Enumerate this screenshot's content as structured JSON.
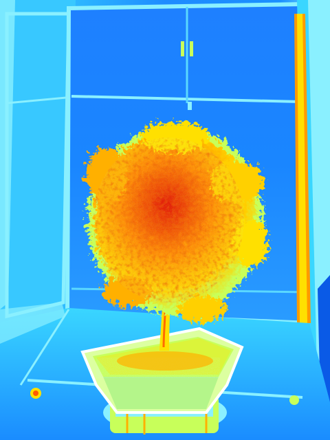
{
  "image": {
    "kind": "false-color thermal-style photograph",
    "subject": "potted-tree",
    "palette": {
      "deep_blue": "#0a5ae6",
      "blue": "#1e8cff",
      "cyan": "#3ad6ff",
      "light_cyan": "#8af0ff",
      "yellow_green": "#c8ff5a",
      "yellow": "#ffe000",
      "orange": "#ff8a00",
      "red": "#e41a00"
    }
  }
}
